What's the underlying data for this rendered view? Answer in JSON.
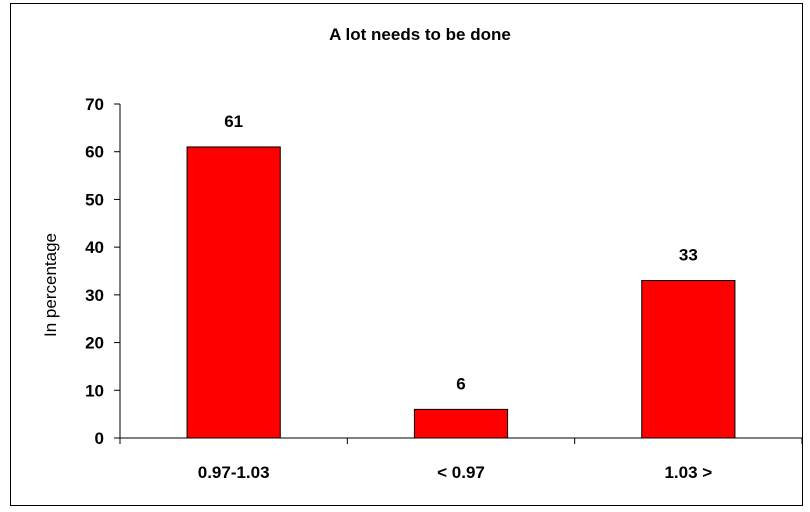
{
  "chart_data": {
    "type": "bar",
    "title": "A lot needs to be done",
    "xlabel": "",
    "ylabel": "In percentage",
    "categories": [
      "0.97-1.03",
      "< 0.97",
      "1.03 >"
    ],
    "values": [
      61,
      6,
      33
    ],
    "ylim": [
      0,
      70
    ],
    "yticks": [
      0,
      10,
      20,
      30,
      40,
      50,
      60,
      70
    ],
    "data_labels": [
      "61",
      "6",
      "33"
    ],
    "grid": false,
    "legend": "none",
    "bar_color": "#ff0000"
  }
}
